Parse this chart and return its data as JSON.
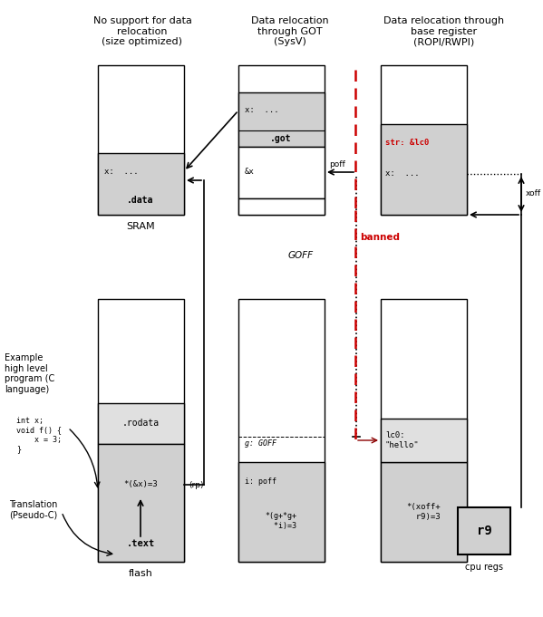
{
  "bg": "#ffffff",
  "light_gray": "#d0d0d0",
  "lighter_gray": "#e0e0e0",
  "red": "#cc0000",
  "col1_title": "No support for data\nrelocation\n(size optimized)",
  "col2_title": "Data relocation\nthrough GOT\n(SysV)",
  "col3_title": "Data relocation through\nbase register\n(ROPI/RWPI)",
  "figw": 5.99,
  "figh": 6.81,
  "dpi": 100
}
